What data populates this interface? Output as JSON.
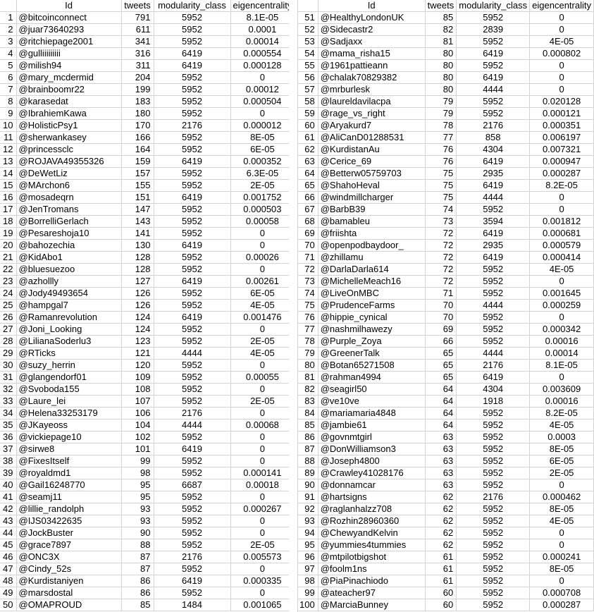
{
  "headers": {
    "rank": "",
    "id": "Id",
    "tweets": "tweets",
    "modularity": "modularity_class",
    "eigen": "eigencentrality"
  },
  "rows": [
    [
      "1",
      "@bitcoinconnect",
      "791",
      "5952",
      "8.1E-05"
    ],
    [
      "2",
      "@juar73640293",
      "611",
      "5952",
      "0.0001"
    ],
    [
      "3",
      "@ritchiepage2001",
      "341",
      "5952",
      "0.00014"
    ],
    [
      "4",
      "@gulliiiiiiiii",
      "316",
      "6419",
      "0.000554"
    ],
    [
      "5",
      "@milish94",
      "311",
      "6419",
      "0.000128"
    ],
    [
      "6",
      "@mary_mcdermid",
      "204",
      "5952",
      "0"
    ],
    [
      "7",
      "@brainboomr22",
      "199",
      "5952",
      "0.00012"
    ],
    [
      "8",
      "@karasedat",
      "183",
      "5952",
      "0.000504"
    ],
    [
      "9",
      "@IbrahiemKawa",
      "180",
      "5952",
      "0"
    ],
    [
      "10",
      "@HolisticPsy1",
      "170",
      "2176",
      "0.000012"
    ],
    [
      "11",
      "@sherwankasey",
      "166",
      "5952",
      "8E-05"
    ],
    [
      "12",
      "@princessclc",
      "164",
      "5952",
      "6E-05"
    ],
    [
      "13",
      "@ROJAVA49355326",
      "159",
      "6419",
      "0.000352"
    ],
    [
      "14",
      "@DeWetLiz",
      "157",
      "5952",
      "6.3E-05"
    ],
    [
      "15",
      "@MArchon6",
      "155",
      "5952",
      "2E-05"
    ],
    [
      "16",
      "@mosadeqrn",
      "151",
      "6419",
      "0.001752"
    ],
    [
      "17",
      "@JenTromans",
      "147",
      "5952",
      "0.000503"
    ],
    [
      "18",
      "@BorrelliGerlach",
      "143",
      "5952",
      "0.00058"
    ],
    [
      "19",
      "@Pesareshoja10",
      "141",
      "5952",
      "0"
    ],
    [
      "20",
      "@bahozechia",
      "130",
      "6419",
      "0"
    ],
    [
      "21",
      "@KidAbo1",
      "128",
      "5952",
      "0.00026"
    ],
    [
      "22",
      "@bluesuezoo",
      "128",
      "5952",
      "0"
    ],
    [
      "23",
      "@azhollly",
      "127",
      "6419",
      "0.00261"
    ],
    [
      "24",
      "@Jody49493654",
      "126",
      "5952",
      "6E-05"
    ],
    [
      "25",
      "@hampgal7",
      "126",
      "5952",
      "4E-05"
    ],
    [
      "26",
      "@Ramanrevolution",
      "124",
      "6419",
      "0.001476"
    ],
    [
      "27",
      "@Joni_Looking",
      "124",
      "5952",
      "0"
    ],
    [
      "28",
      "@LilianaSoderlu3",
      "123",
      "5952",
      "2E-05"
    ],
    [
      "29",
      "@RTicks",
      "121",
      "4444",
      "4E-05"
    ],
    [
      "30",
      "@suzy_herrin",
      "120",
      "5952",
      "0"
    ],
    [
      "31",
      "@glangendorf01",
      "109",
      "5952",
      "0.00055"
    ],
    [
      "32",
      "@Svoboda155",
      "108",
      "5952",
      "0"
    ],
    [
      "33",
      "@Laure_lei",
      "107",
      "5952",
      "2E-05"
    ],
    [
      "34",
      "@Helena33253179",
      "106",
      "2176",
      "0"
    ],
    [
      "35",
      "@JKayeoss",
      "104",
      "4444",
      "0.00068"
    ],
    [
      "36",
      "@vickiepage10",
      "102",
      "5952",
      "0"
    ],
    [
      "37",
      "@sirwe8",
      "101",
      "6419",
      "0"
    ],
    [
      "38",
      "@FixesItself",
      "99",
      "5952",
      "0"
    ],
    [
      "39",
      "@royaldmd1",
      "98",
      "5952",
      "0.000141"
    ],
    [
      "40",
      "@Gail16248770",
      "95",
      "6687",
      "0.00018"
    ],
    [
      "41",
      "@seamj11",
      "95",
      "5952",
      "0"
    ],
    [
      "42",
      "@lillie_randolph",
      "93",
      "5952",
      "0.000267"
    ],
    [
      "43",
      "@IJS03422635",
      "93",
      "5952",
      "0"
    ],
    [
      "44",
      "@JockBuster",
      "90",
      "5952",
      "0"
    ],
    [
      "45",
      "@grace7897",
      "88",
      "5952",
      "2E-05"
    ],
    [
      "46",
      "@ONC3X",
      "87",
      "2176",
      "0.005573"
    ],
    [
      "47",
      "@Cindy_52s",
      "87",
      "5952",
      "0"
    ],
    [
      "48",
      "@Kurdistaniyen",
      "86",
      "6419",
      "0.000335"
    ],
    [
      "49",
      "@marsdostal",
      "86",
      "5952",
      "0"
    ],
    [
      "50",
      "@OMAPROUD",
      "85",
      "1484",
      "0.001065"
    ],
    [
      "51",
      "@HealthyLondonUK",
      "85",
      "5952",
      "0"
    ],
    [
      "52",
      "@Sidecastr2",
      "82",
      "2839",
      "0"
    ],
    [
      "53",
      "@Sadjaxx",
      "81",
      "5952",
      "4E-05"
    ],
    [
      "54",
      "@mama_risha15",
      "80",
      "6419",
      "0.000802"
    ],
    [
      "55",
      "@1961pattieann",
      "80",
      "5952",
      "0"
    ],
    [
      "56",
      "@chalak70829382",
      "80",
      "6419",
      "0"
    ],
    [
      "57",
      "@mrburlesk",
      "80",
      "4444",
      "0"
    ],
    [
      "58",
      "@laureldavilacpa",
      "79",
      "5952",
      "0.020128"
    ],
    [
      "59",
      "@rage_vs_right",
      "79",
      "5952",
      "0.000121"
    ],
    [
      "60",
      "@Aryakurd7",
      "78",
      "2176",
      "0.000351"
    ],
    [
      "61",
      "@AliCanD01288531",
      "77",
      "858",
      "0.006197"
    ],
    [
      "62",
      "@KurdistanAu",
      "76",
      "4304",
      "0.007321"
    ],
    [
      "63",
      "@Cerice_69",
      "76",
      "6419",
      "0.000947"
    ],
    [
      "64",
      "@Betterw05759703",
      "75",
      "2935",
      "0.000287"
    ],
    [
      "65",
      "@ShahoHeval",
      "75",
      "6419",
      "8.2E-05"
    ],
    [
      "66",
      "@windmillcharger",
      "75",
      "4444",
      "0"
    ],
    [
      "67",
      "@BarbB39",
      "74",
      "5952",
      "0"
    ],
    [
      "68",
      "@bamableu",
      "73",
      "3594",
      "0.001812"
    ],
    [
      "69",
      "@friishta",
      "72",
      "6419",
      "0.000681"
    ],
    [
      "70",
      "@openpodbaydoor_",
      "72",
      "2935",
      "0.000579"
    ],
    [
      "71",
      "@zhillamu",
      "72",
      "6419",
      "0.000414"
    ],
    [
      "72",
      "@DarlaDarla614",
      "72",
      "5952",
      "4E-05"
    ],
    [
      "73",
      "@MichelleMeach16",
      "72",
      "5952",
      "0"
    ],
    [
      "74",
      "@LiveOnMBC",
      "71",
      "5952",
      "0.001645"
    ],
    [
      "75",
      "@PrudenceFarms",
      "70",
      "4444",
      "0.000259"
    ],
    [
      "76",
      "@hippie_cynical",
      "70",
      "5952",
      "0"
    ],
    [
      "77",
      "@nashmilhawezy",
      "69",
      "5952",
      "0.000342"
    ],
    [
      "78",
      "@Purple_Zoya",
      "66",
      "5952",
      "0.00016"
    ],
    [
      "79",
      "@GreenerTalk",
      "65",
      "4444",
      "0.00014"
    ],
    [
      "80",
      "@Botan65271508",
      "65",
      "2176",
      "8.1E-05"
    ],
    [
      "81",
      "@rahman4994",
      "65",
      "6419",
      "0"
    ],
    [
      "82",
      "@seagirl50",
      "64",
      "4304",
      "0.003609"
    ],
    [
      "83",
      "@ve10ve",
      "64",
      "1918",
      "0.00016"
    ],
    [
      "84",
      "@mariamaria4848",
      "64",
      "5952",
      "8.2E-05"
    ],
    [
      "85",
      "@jambie61",
      "64",
      "5952",
      "4E-05"
    ],
    [
      "86",
      "@govnmtgirl",
      "63",
      "5952",
      "0.0003"
    ],
    [
      "87",
      "@DonWilliamson3",
      "63",
      "5952",
      "8E-05"
    ],
    [
      "88",
      "@Joseph4800",
      "63",
      "5952",
      "6E-05"
    ],
    [
      "89",
      "@Crawley41028176",
      "63",
      "5952",
      "2E-05"
    ],
    [
      "90",
      "@donnamcar",
      "63",
      "5952",
      "0"
    ],
    [
      "91",
      "@hartsigns",
      "62",
      "2176",
      "0.000462"
    ],
    [
      "92",
      "@raglanhalzz708",
      "62",
      "5952",
      "8E-05"
    ],
    [
      "93",
      "@Rozhin28960360",
      "62",
      "5952",
      "4E-05"
    ],
    [
      "94",
      "@ChewyandKelvin",
      "62",
      "5952",
      "0"
    ],
    [
      "95",
      "@yummies4tummies",
      "62",
      "5952",
      "0"
    ],
    [
      "96",
      "@mtpilotbigshot",
      "61",
      "5952",
      "0.000241"
    ],
    [
      "97",
      "@foolm1ns",
      "61",
      "5952",
      "8E-05"
    ],
    [
      "98",
      "@PiaPinachiodo",
      "61",
      "5952",
      "0"
    ],
    [
      "99",
      "@ateacher97",
      "60",
      "5952",
      "0.000708"
    ],
    [
      "100",
      "@MarciaBunney",
      "60",
      "5952",
      "0.000287"
    ]
  ]
}
